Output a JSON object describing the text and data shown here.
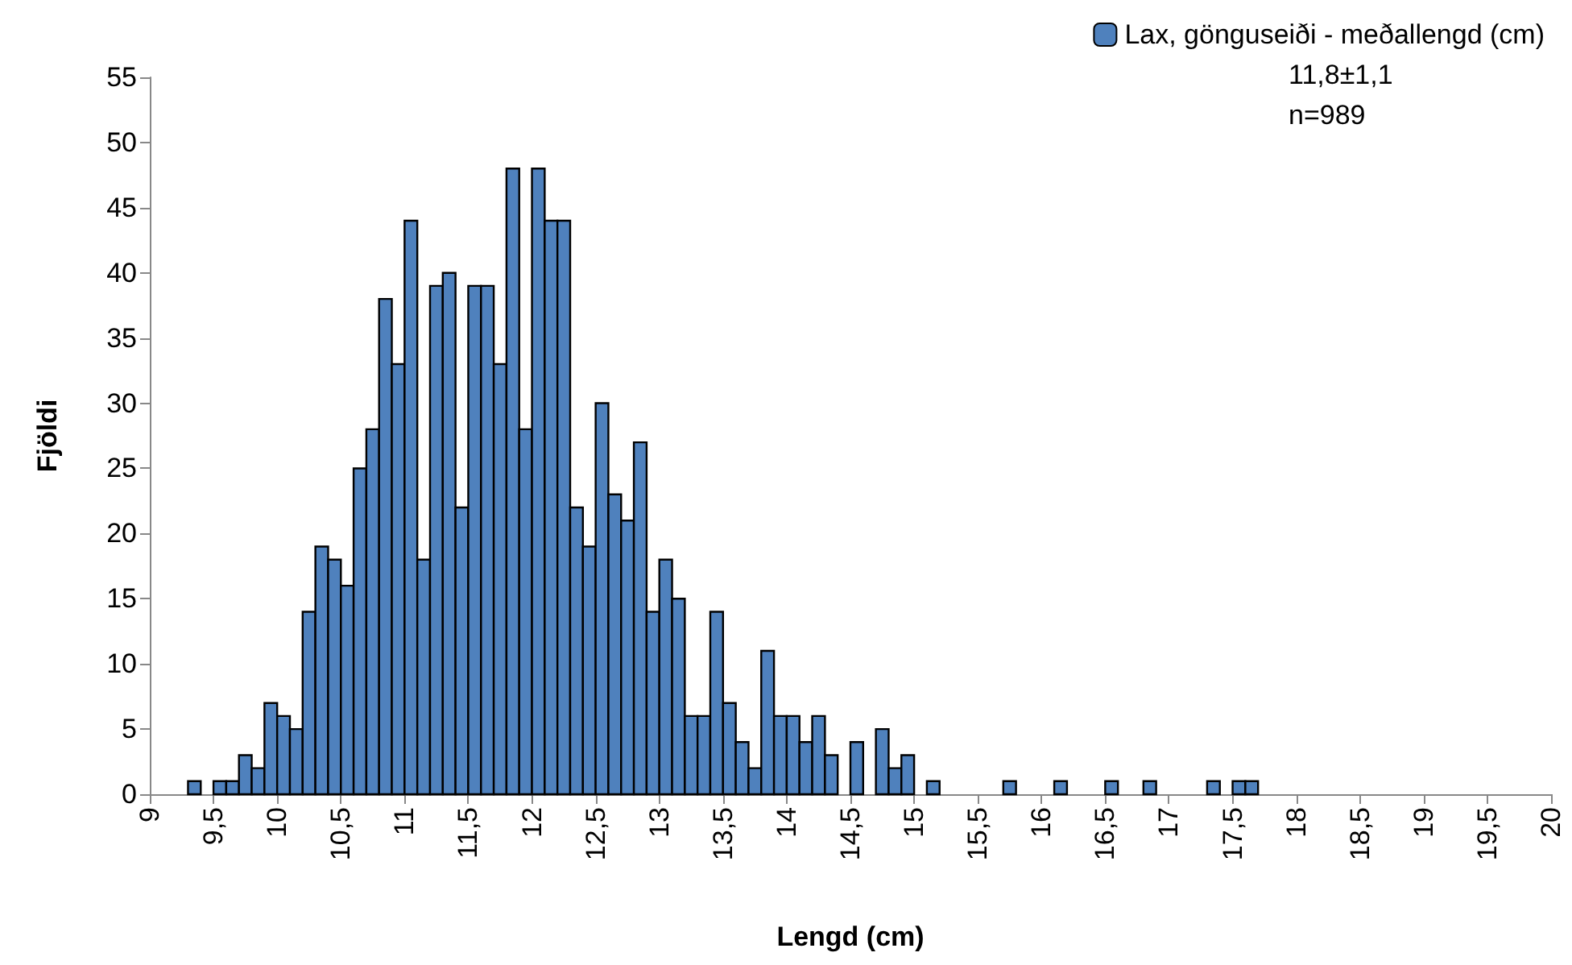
{
  "chart_data": {
    "type": "histogram",
    "xlabel": "Lengd (cm)",
    "ylabel": "Fjöldi",
    "bins": [
      9,
      9.1,
      9.2,
      9.3,
      9.4,
      9.5,
      9.6,
      9.7,
      9.8,
      9.9,
      10,
      10.1,
      10.2,
      10.3,
      10.4,
      10.5,
      10.6,
      10.7,
      10.8,
      10.9,
      11,
      11.1,
      11.2,
      11.3,
      11.4,
      11.5,
      11.6,
      11.7,
      11.8,
      11.9,
      12,
      12.1,
      12.2,
      12.3,
      12.4,
      12.5,
      12.6,
      12.7,
      12.8,
      12.9,
      13,
      13.1,
      13.2,
      13.3,
      13.4,
      13.5,
      13.6,
      13.7,
      13.8,
      13.9,
      14,
      14.1,
      14.2,
      14.3,
      14.4,
      14.5,
      14.6,
      14.7,
      14.8,
      14.9,
      15,
      15.1,
      15.2,
      15.3,
      15.4,
      15.5,
      15.6,
      15.7,
      15.8,
      15.9,
      16,
      16.1,
      16.2,
      16.3,
      16.4,
      16.5,
      16.6,
      16.7,
      16.8,
      16.9,
      17,
      17.1,
      17.2,
      17.3,
      17.4,
      17.5,
      17.6,
      17.7,
      17.8,
      17.9,
      18,
      18.1,
      18.2,
      18.3,
      18.4,
      18.5,
      18.6,
      18.7,
      18.8,
      18.9,
      19,
      19.1,
      19.2,
      19.3,
      19.4,
      19.5,
      19.6,
      19.7,
      19.8,
      19.9,
      20
    ],
    "series": [
      {
        "name": "Lax, gönguseiði - meðallengd (cm)",
        "color": "#4f81bd",
        "values": [
          0,
          0,
          0,
          1,
          0,
          1,
          1,
          3,
          2,
          7,
          6,
          5,
          14,
          19,
          18,
          16,
          25,
          28,
          38,
          33,
          44,
          18,
          39,
          40,
          22,
          39,
          39,
          33,
          48,
          28,
          48,
          44,
          44,
          22,
          19,
          30,
          23,
          21,
          27,
          14,
          18,
          15,
          6,
          6,
          14,
          7,
          4,
          2,
          11,
          6,
          6,
          4,
          6,
          3,
          0,
          4,
          0,
          5,
          2,
          3,
          0,
          1,
          0,
          0,
          0,
          0,
          0,
          1,
          0,
          0,
          0,
          1,
          0,
          0,
          0,
          1,
          0,
          0,
          1,
          0,
          0,
          0,
          0,
          1,
          0,
          1,
          1,
          0,
          0,
          0,
          0,
          0,
          0,
          0,
          0,
          0,
          0,
          0,
          0,
          0,
          0,
          0,
          0,
          0,
          0,
          0,
          0,
          0,
          0,
          0
        ]
      }
    ],
    "annotations": [
      "11,8±1,1",
      "n=989"
    ],
    "xlim": [
      9,
      20
    ],
    "xticks": [
      9,
      {
        "value": 9.5,
        "label": "9,5"
      },
      10,
      {
        "value": 10.5,
        "label": "10,5"
      },
      11,
      {
        "value": 11.5,
        "label": "11,5"
      },
      12,
      {
        "value": 12.5,
        "label": "12,5"
      },
      13,
      {
        "value": 13.5,
        "label": "13,5"
      },
      14,
      {
        "value": 14.5,
        "label": "14,5"
      },
      15,
      {
        "value": 15.5,
        "label": "15,5"
      },
      16,
      {
        "value": 16.5,
        "label": "16,5"
      },
      17,
      {
        "value": 17.5,
        "label": "17,5"
      },
      18,
      {
        "value": 18.5,
        "label": "18,5"
      },
      19,
      {
        "value": 19.5,
        "label": "19,5"
      },
      20
    ],
    "ylim": [
      0,
      55
    ],
    "yticks": [
      0,
      5,
      10,
      15,
      20,
      25,
      30,
      35,
      40,
      45,
      50,
      55
    ],
    "grid": false,
    "legend": "top right"
  }
}
